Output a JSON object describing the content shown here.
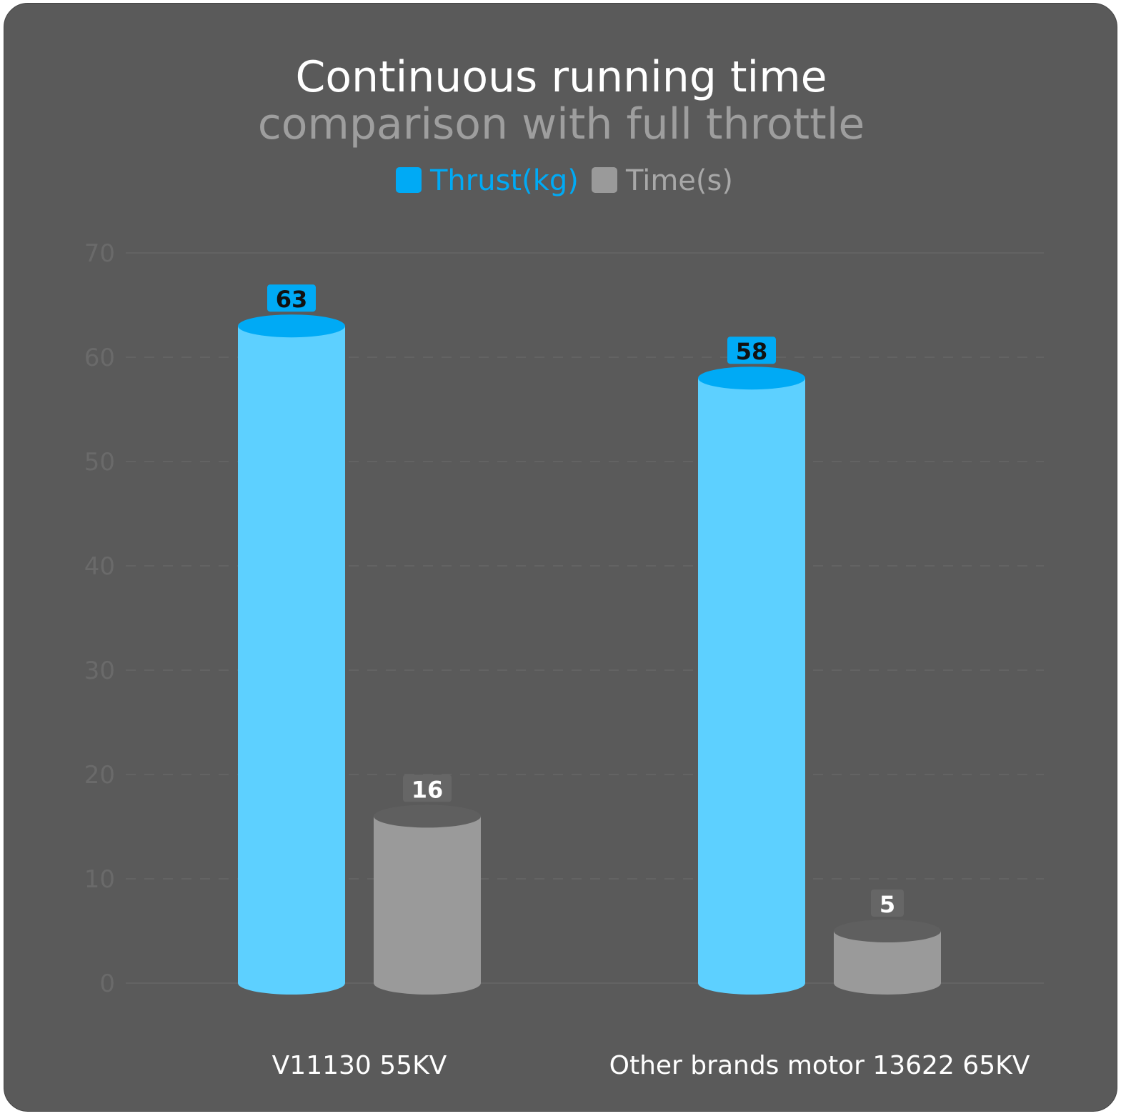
{
  "chart_data": {
    "type": "bar",
    "title": "Continuous running time",
    "subtitle": "comparison with full throttle",
    "categories": [
      "V11130  55KV",
      "Other brands motor 13622 65KV"
    ],
    "series": [
      {
        "name": "Thrust(kg)",
        "values": [
          63,
          58
        ],
        "color": "#5dd0ff",
        "top_color": "#00aaf5",
        "label_bg": "#00aaf5",
        "label_color": "#111111"
      },
      {
        "name": "Time(s)",
        "values": [
          16,
          5
        ],
        "color": "#9a9a9a",
        "top_color": "#5f5f5f",
        "label_bg": "#666666",
        "label_color": "#ffffff"
      }
    ],
    "ylim": [
      0,
      70
    ],
    "yticks": [
      "0",
      "10",
      "20",
      "30",
      "40",
      "50",
      "60",
      "70"
    ],
    "grid": true,
    "legend_position": "top-center",
    "legend_colors": {
      "Thrust(kg)": "#00aaf5",
      "Time(s)": "#9a9a9a"
    },
    "legend_text_colors": {
      "Thrust(kg)": "#00aaf5",
      "Time(s)": "#a8a8a8"
    }
  }
}
